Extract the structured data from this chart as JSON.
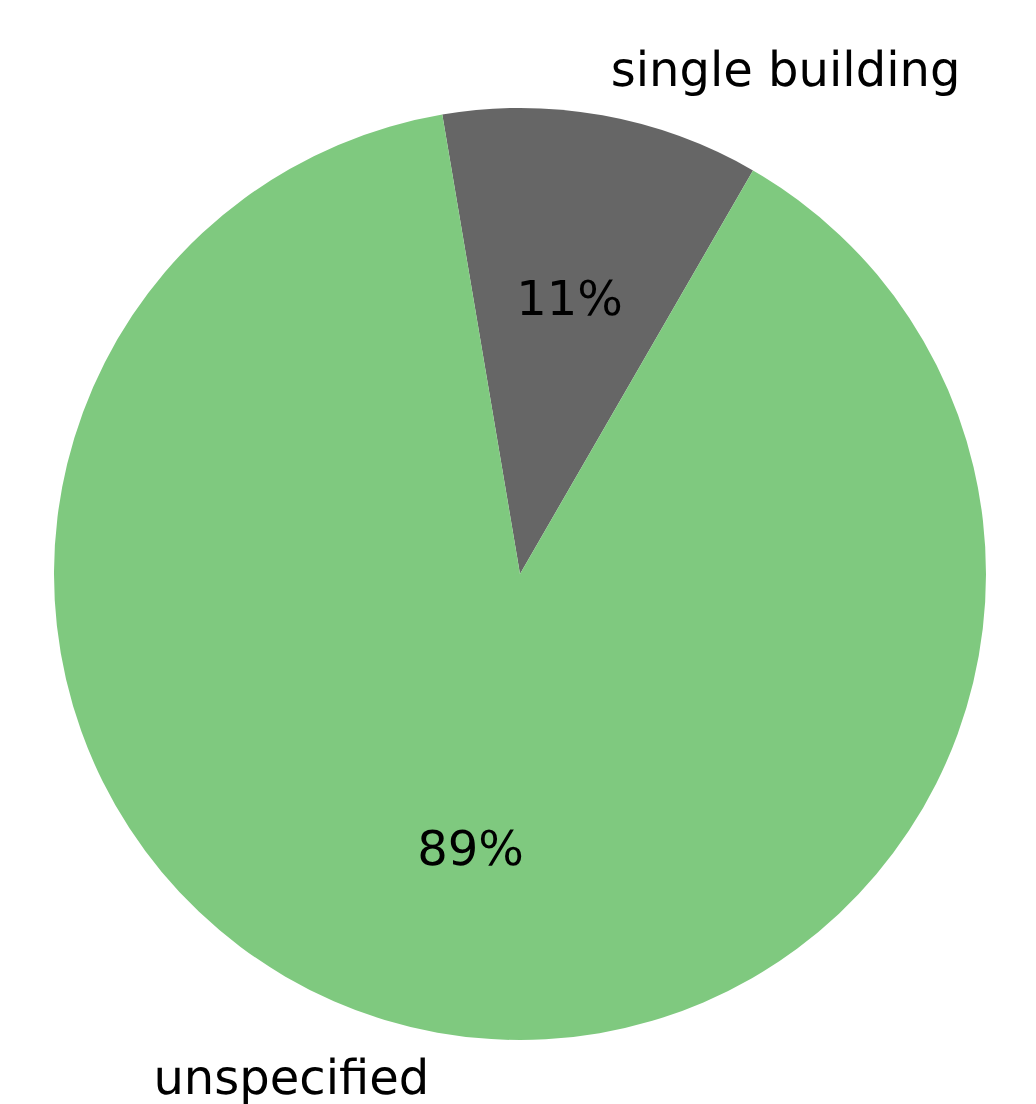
{
  "chart_data": {
    "type": "pie",
    "categories": [
      "single building",
      "unspecified"
    ],
    "values": [
      11,
      89
    ],
    "colors": [
      "#666666",
      "#7fc97f"
    ],
    "value_labels": [
      "11%",
      "89%"
    ],
    "legend": false
  }
}
